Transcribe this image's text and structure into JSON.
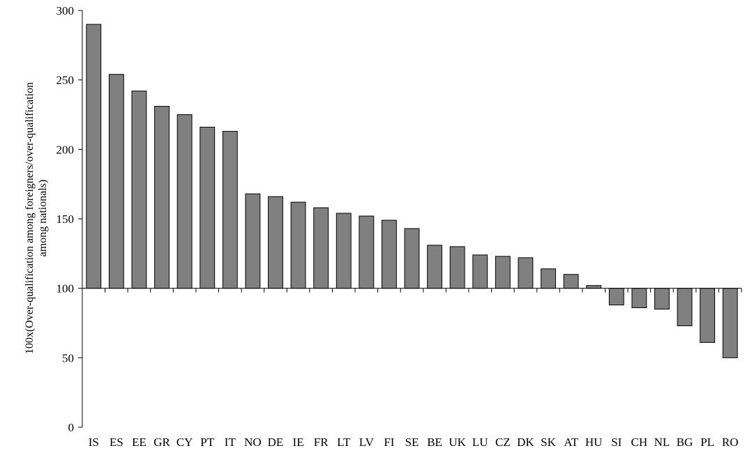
{
  "chart_data": {
    "type": "bar",
    "title": "",
    "xlabel": "",
    "ylabel_lines": [
      "100x(Over-qualification among foreigners/over-qualification",
      "among nationals)"
    ],
    "ylim": [
      0,
      300
    ],
    "yticks": [
      0,
      50,
      100,
      150,
      200,
      250,
      300
    ],
    "baseline": 100,
    "grid": false,
    "bar_color": "#808080",
    "categories": [
      "IS",
      "ES",
      "EE",
      "GR",
      "CY",
      "PT",
      "IT",
      "NO",
      "DE",
      "IE",
      "FR",
      "LT",
      "LV",
      "FI",
      "SE",
      "BE",
      "UK",
      "LU",
      "CZ",
      "DK",
      "SK",
      "AT",
      "HU",
      "SI",
      "CH",
      "NL",
      "BG",
      "PL",
      "RO"
    ],
    "values": [
      290,
      254,
      242,
      231,
      225,
      216,
      213,
      168,
      166,
      162,
      158,
      154,
      152,
      149,
      143,
      131,
      130,
      124,
      123,
      122,
      114,
      110,
      102,
      88,
      86,
      85,
      73,
      61,
      50
    ]
  }
}
